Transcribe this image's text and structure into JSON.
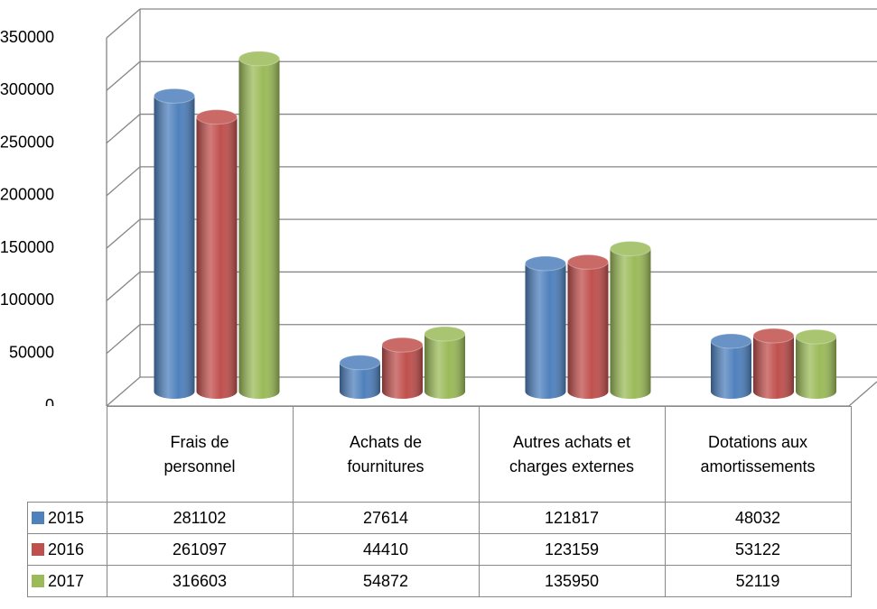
{
  "chart_data": {
    "type": "bar3d_cylinder",
    "categories": [
      "Frais de personnel",
      "Achats de fournitures",
      "Autres achats et charges externes",
      "Dotations aux amortissements"
    ],
    "series": [
      {
        "name": "2015",
        "color": "#4f81bd",
        "values": [
          281102,
          27614,
          121817,
          48032
        ]
      },
      {
        "name": "2016",
        "color": "#c0504d",
        "values": [
          261097,
          44410,
          123159,
          53122
        ]
      },
      {
        "name": "2017",
        "color": "#9bbb59",
        "values": [
          316603,
          54872,
          135950,
          52119
        ]
      }
    ],
    "ylim": [
      0,
      350000
    ],
    "yticks": [
      0,
      50000,
      100000,
      150000,
      200000,
      250000,
      300000,
      350000
    ],
    "grid": true,
    "legend": "table"
  }
}
